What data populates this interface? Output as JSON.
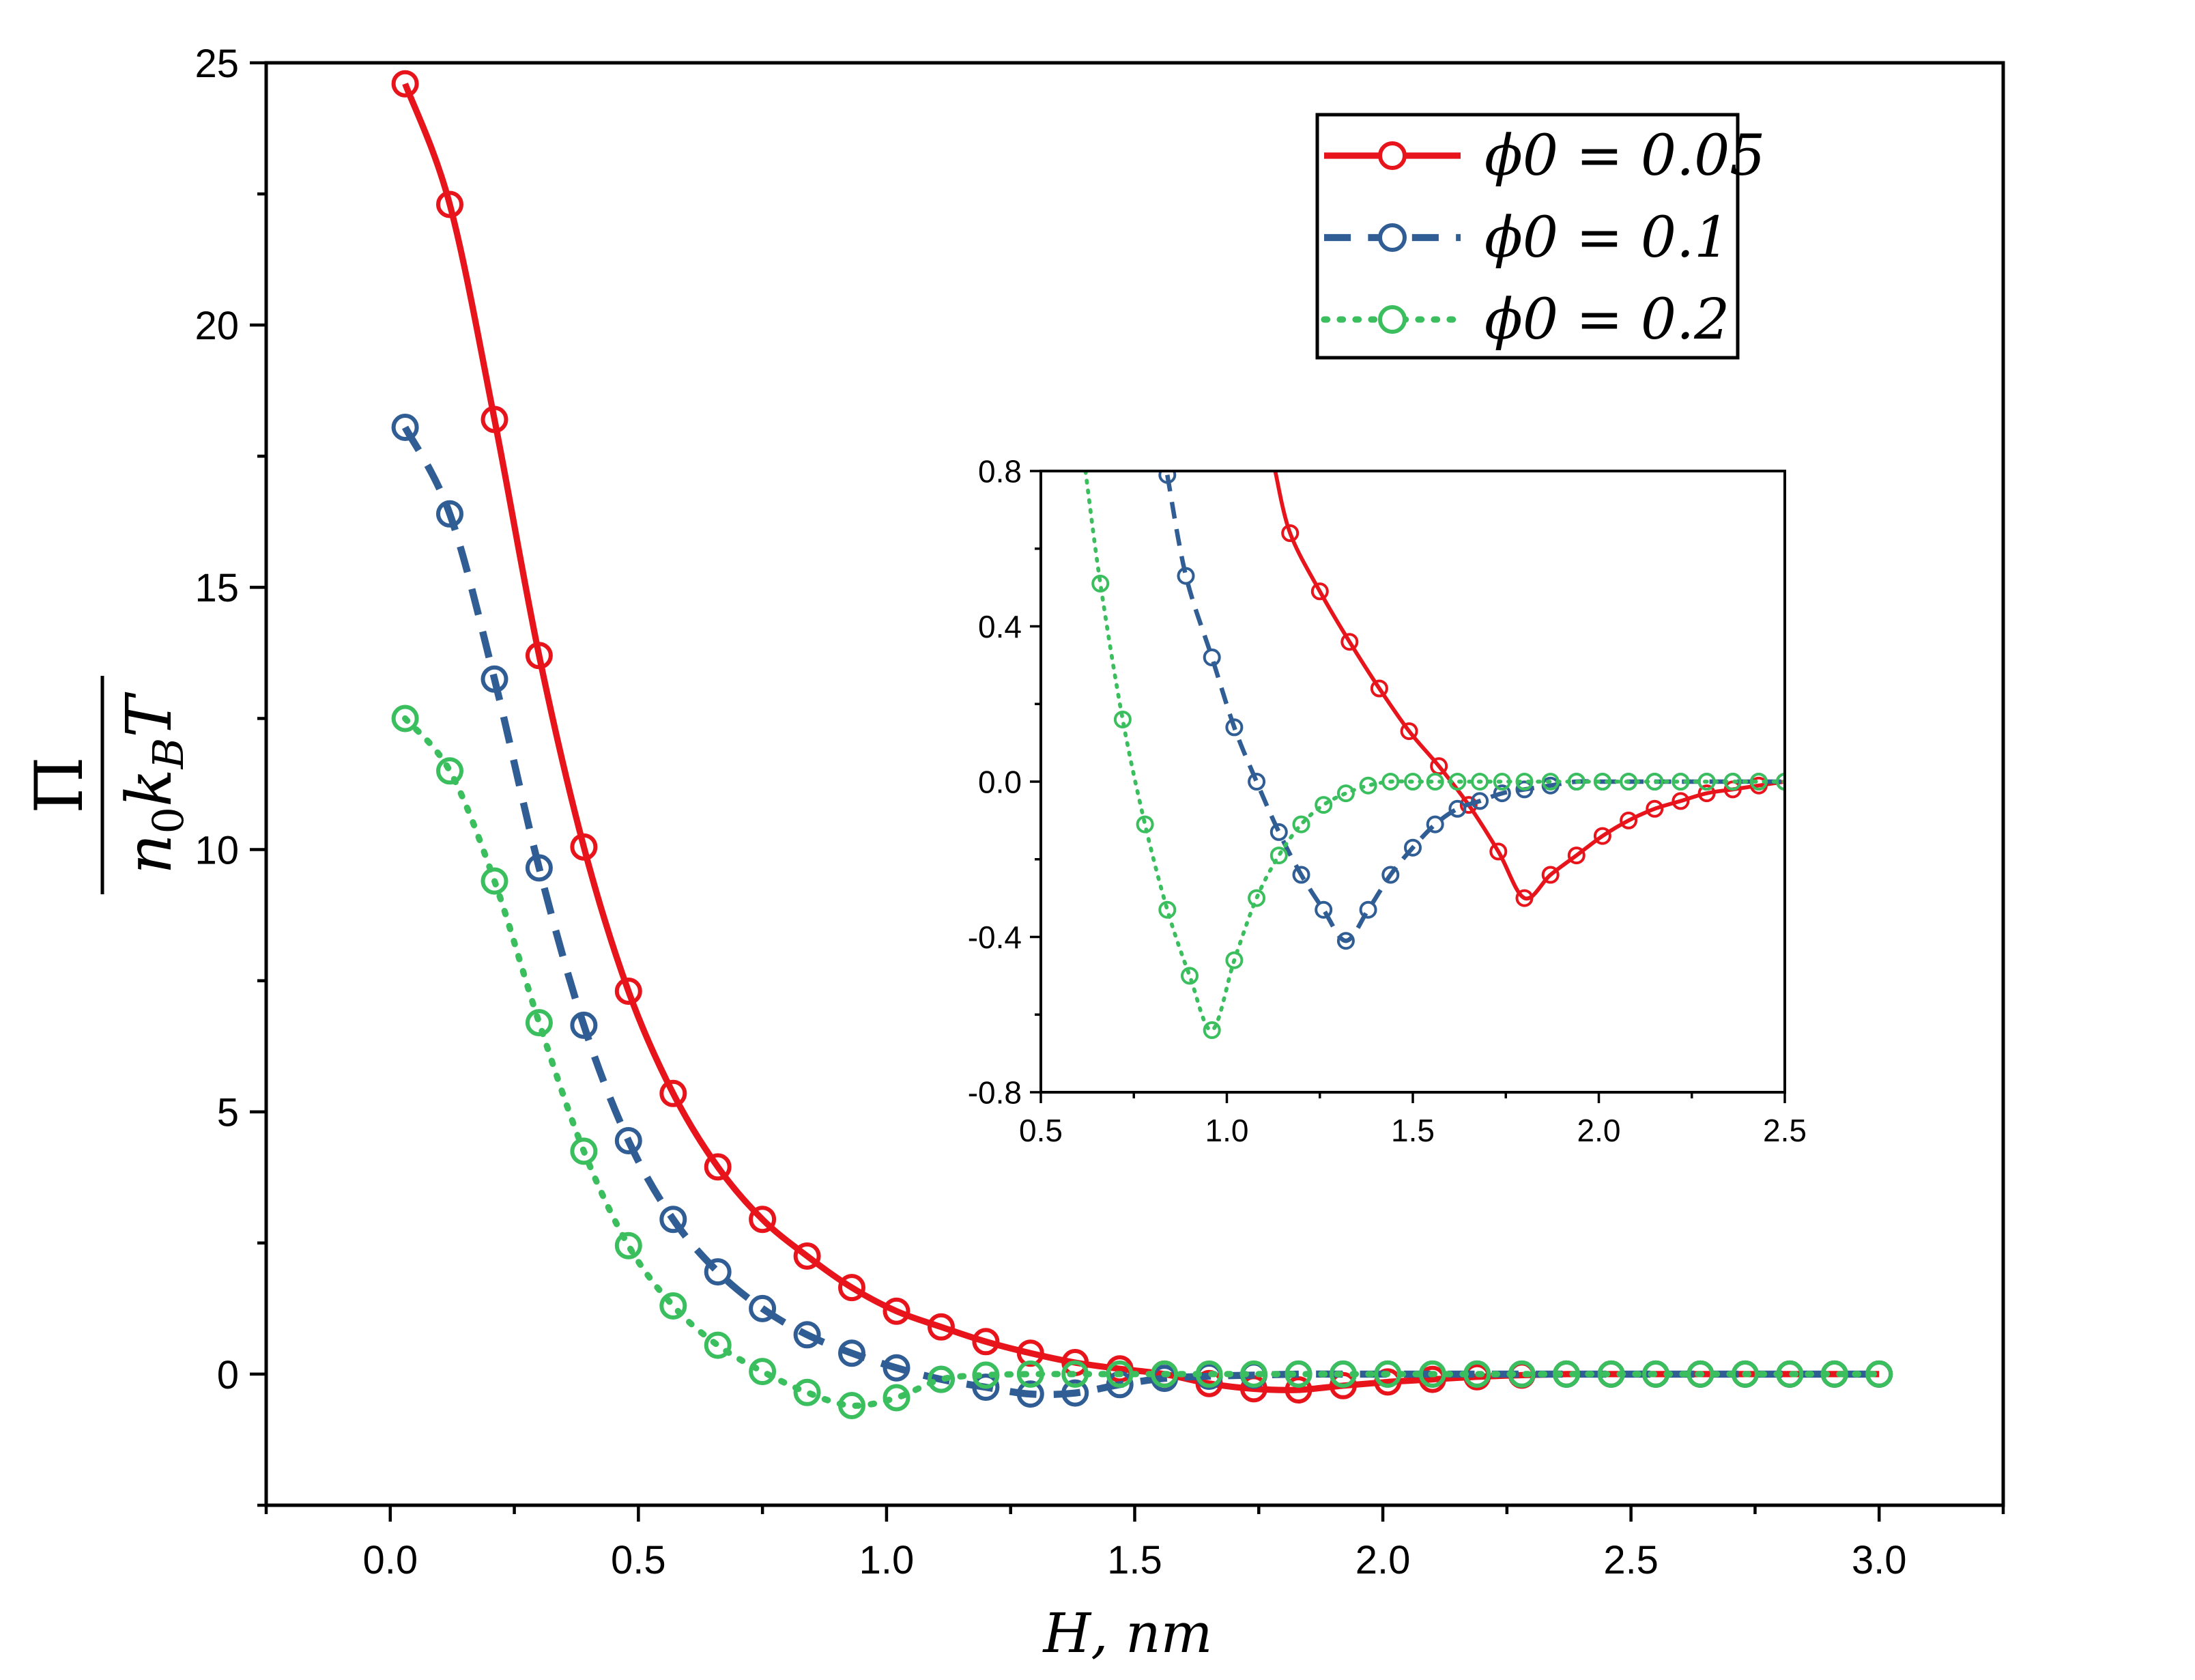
{
  "chart_data": [
    {
      "type": "line",
      "name": "main",
      "title": "",
      "xlabel": "H, nm",
      "ylabel": "Π / (n0 kB T)",
      "xlim": [
        -0.25,
        3.25
      ],
      "ylim": [
        -2.5,
        25
      ],
      "xticks": [
        0.0,
        0.5,
        1.0,
        1.5,
        2.0,
        2.5,
        3.0
      ],
      "xtick_labels": [
        "0.0",
        "0.5",
        "1.0",
        "1.5",
        "2.0",
        "2.5",
        "3.0"
      ],
      "yticks": [
        0,
        5,
        10,
        15,
        20,
        25
      ],
      "ytick_labels": [
        "0",
        "5",
        "10",
        "15",
        "20",
        "25"
      ],
      "legend": {
        "position": "top-right",
        "entries": [
          "ϕ0 = 0.05",
          "ϕ0 = 0.1",
          "ϕ0 = 0.2"
        ]
      },
      "series": [
        {
          "name": "ϕ0 = 0.05",
          "color": "#e8141b",
          "line": "solid",
          "x": [
            0.03,
            0.12,
            0.21,
            0.3,
            0.39,
            0.48,
            0.57,
            0.66,
            0.75,
            0.84,
            0.93,
            1.02,
            1.11,
            1.2,
            1.29,
            1.38,
            1.47,
            1.56,
            1.65,
            1.74,
            1.83,
            1.92,
            2.01,
            2.1,
            2.19,
            2.28,
            2.37,
            2.46,
            2.55,
            2.64,
            2.73,
            2.82,
            2.91,
            3.0
          ],
          "y": [
            24.6,
            22.3,
            18.2,
            13.7,
            10.05,
            7.3,
            5.35,
            3.95,
            2.95,
            2.25,
            1.65,
            1.2,
            0.9,
            0.62,
            0.4,
            0.22,
            0.1,
            0.0,
            -0.18,
            -0.28,
            -0.3,
            -0.22,
            -0.15,
            -0.1,
            -0.05,
            -0.02,
            0.0,
            0.0,
            0.0,
            0.0,
            0.0,
            0.0,
            0.0,
            0.0
          ]
        },
        {
          "name": "ϕ0 = 0.1",
          "color": "#2f5d94",
          "line": "dashed",
          "x": [
            0.03,
            0.12,
            0.21,
            0.3,
            0.39,
            0.48,
            0.57,
            0.66,
            0.75,
            0.84,
            0.93,
            1.02,
            1.11,
            1.2,
            1.29,
            1.38,
            1.47,
            1.56,
            1.65,
            1.74,
            1.83,
            1.92,
            2.01,
            2.1,
            2.19,
            2.28,
            2.37,
            2.46,
            2.55,
            2.64,
            2.73,
            2.82,
            2.91,
            3.0
          ],
          "y": [
            18.05,
            16.4,
            13.25,
            9.65,
            6.65,
            4.45,
            2.95,
            1.95,
            1.25,
            0.75,
            0.4,
            0.12,
            -0.1,
            -0.25,
            -0.38,
            -0.36,
            -0.2,
            -0.08,
            -0.04,
            -0.02,
            0.0,
            0.0,
            0.0,
            0.0,
            0.0,
            0.0,
            0.0,
            0.0,
            0.0,
            0.0,
            0.0,
            0.0,
            0.0,
            0.0
          ]
        },
        {
          "name": "ϕ0 = 0.2",
          "color": "#3bbf5e",
          "line": "dotted",
          "x": [
            0.03,
            0.12,
            0.21,
            0.3,
            0.39,
            0.48,
            0.57,
            0.66,
            0.75,
            0.84,
            0.93,
            1.02,
            1.11,
            1.2,
            1.29,
            1.38,
            1.47,
            1.56,
            1.65,
            1.74,
            1.83,
            1.92,
            2.01,
            2.1,
            2.19,
            2.28,
            2.37,
            2.46,
            2.55,
            2.64,
            2.73,
            2.82,
            2.91,
            3.0
          ],
          "y": [
            12.5,
            11.5,
            9.4,
            6.7,
            4.25,
            2.45,
            1.3,
            0.55,
            0.05,
            -0.35,
            -0.6,
            -0.45,
            -0.1,
            -0.02,
            0.0,
            0.0,
            0.0,
            0.0,
            0.0,
            0.0,
            0.0,
            0.0,
            0.0,
            0.0,
            0.0,
            0.0,
            0.0,
            0.0,
            0.0,
            0.0,
            0.0,
            0.0,
            0.0,
            0.0
          ]
        }
      ]
    },
    {
      "type": "line",
      "name": "inset",
      "title": "",
      "xlabel": "",
      "ylabel": "",
      "xlim": [
        0.5,
        2.5
      ],
      "ylim": [
        -0.8,
        0.8
      ],
      "xticks": [
        0.5,
        1.0,
        1.5,
        2.0,
        2.5
      ],
      "xtick_labels": [
        "0.5",
        "1.0",
        "1.5",
        "2.0",
        "2.5"
      ],
      "yticks": [
        -0.8,
        -0.4,
        0.0,
        0.4,
        0.8
      ],
      "ytick_labels": [
        "-0.8",
        "-0.4",
        "0.0",
        "0.4",
        "0.8"
      ],
      "series": [
        {
          "name": "ϕ0 = 0.05",
          "color": "#e8141b",
          "line": "solid",
          "x": [
            1.13,
            1.17,
            1.25,
            1.33,
            1.41,
            1.49,
            1.57,
            1.65,
            1.73,
            1.8,
            1.87,
            1.94,
            2.01,
            2.08,
            2.15,
            2.22,
            2.29,
            2.36,
            2.43,
            2.5
          ],
          "y": [
            0.8,
            0.64,
            0.49,
            0.36,
            0.24,
            0.13,
            0.04,
            -0.06,
            -0.18,
            -0.3,
            -0.24,
            -0.19,
            -0.14,
            -0.1,
            -0.07,
            -0.05,
            -0.03,
            -0.02,
            -0.01,
            0.0
          ],
          "markers_from_index": 1
        },
        {
          "name": "ϕ0 = 0.1",
          "color": "#2f5d94",
          "line": "dashed",
          "x": [
            0.84,
            0.89,
            0.96,
            1.02,
            1.08,
            1.14,
            1.2,
            1.26,
            1.32,
            1.38,
            1.44,
            1.5,
            1.56,
            1.62,
            1.68,
            1.74,
            1.8,
            1.87,
            1.94,
            2.01,
            2.08,
            2.15,
            2.22,
            2.29,
            2.36,
            2.43,
            2.5
          ],
          "y": [
            0.79,
            0.53,
            0.32,
            0.14,
            0.0,
            -0.13,
            -0.24,
            -0.33,
            -0.41,
            -0.33,
            -0.24,
            -0.17,
            -0.11,
            -0.07,
            -0.05,
            -0.03,
            -0.02,
            -0.01,
            0.0,
            0.0,
            0.0,
            0.0,
            0.0,
            0.0,
            0.0,
            0.0,
            0.0
          ]
        },
        {
          "name": "ϕ0 = 0.2",
          "color": "#3bbf5e",
          "line": "dotted",
          "x": [
            0.62,
            0.66,
            0.72,
            0.78,
            0.84,
            0.9,
            0.96,
            1.02,
            1.08,
            1.14,
            1.2,
            1.26,
            1.32,
            1.38,
            1.44,
            1.5,
            1.56,
            1.62,
            1.68,
            1.74,
            1.8,
            1.87,
            1.94,
            2.01,
            2.08,
            2.15,
            2.22,
            2.29,
            2.36,
            2.43,
            2.5
          ],
          "y": [
            0.8,
            0.51,
            0.16,
            -0.11,
            -0.33,
            -0.5,
            -0.64,
            -0.46,
            -0.3,
            -0.19,
            -0.11,
            -0.06,
            -0.03,
            -0.01,
            0.0,
            0.0,
            0.0,
            0.0,
            0.0,
            0.0,
            0.0,
            0.0,
            0.0,
            0.0,
            0.0,
            0.0,
            0.0,
            0.0,
            0.0,
            0.0,
            0.0
          ],
          "markers_from_index": 1
        }
      ]
    }
  ]
}
